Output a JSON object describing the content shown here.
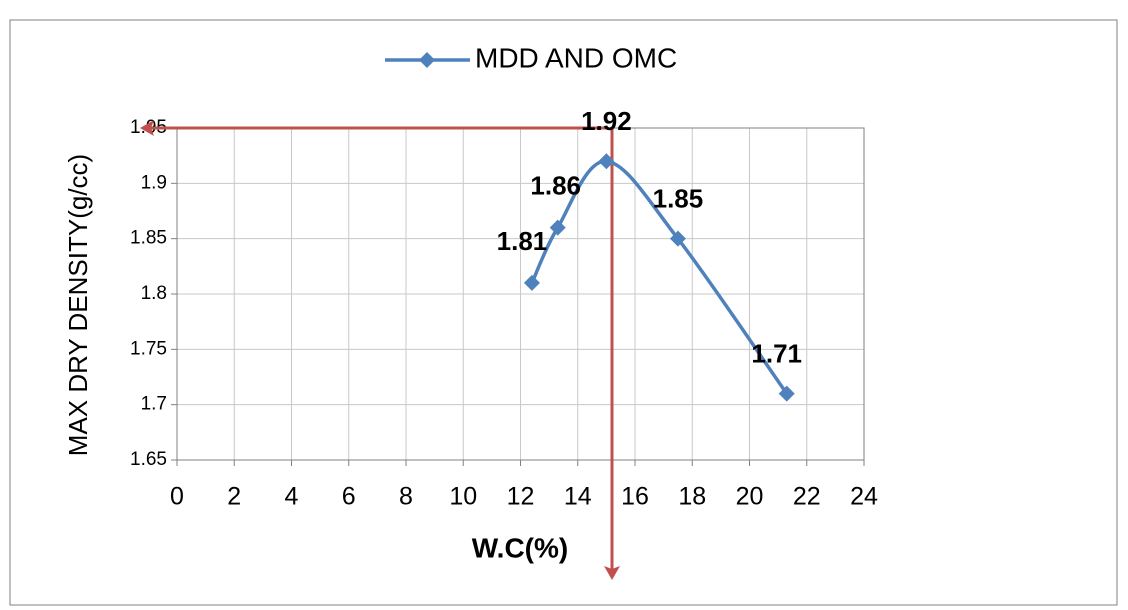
{
  "chart_data": {
    "type": "line",
    "legend_label": "MDD AND OMC",
    "xlabel": "W.C(%)",
    "ylabel": "MAX DRY DENSITY(g/cc)",
    "x": [
      12.4,
      13.3,
      15,
      17.5,
      21.3
    ],
    "series": [
      {
        "name": "MDD AND OMC",
        "color": "#4f81bd",
        "values": [
          1.81,
          1.86,
          1.92,
          1.85,
          1.71
        ]
      }
    ],
    "xlim": [
      0,
      24
    ],
    "xticks": [
      0,
      2,
      4,
      6,
      8,
      10,
      12,
      14,
      16,
      18,
      20,
      22,
      24
    ],
    "ylim": [
      1.65,
      1.95
    ],
    "yticks": [
      1.65,
      1.7,
      1.75,
      1.8,
      1.85,
      1.9,
      1.95
    ],
    "grid": true,
    "legend": "top"
  }
}
